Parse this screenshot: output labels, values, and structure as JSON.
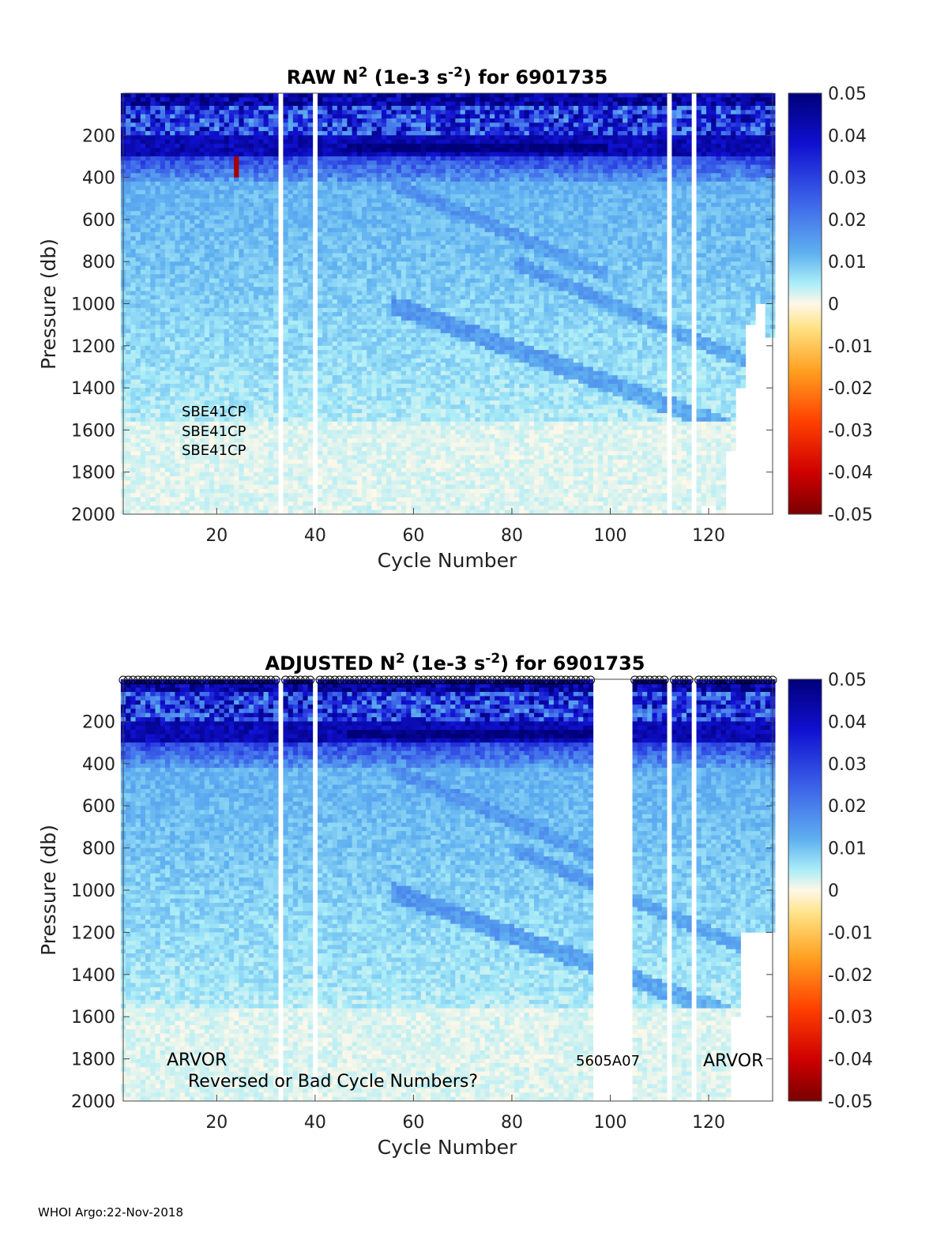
{
  "chart_data": [
    {
      "type": "heatmap",
      "title_parts": {
        "prefix": "RAW N",
        "sup1": "2",
        "mid": " (1e-3 s",
        "sup2": "-2",
        "suffix": ") for 6901735"
      },
      "xlabel": "Cycle Number",
      "ylabel": "Pressure (db)",
      "xlim": [
        1,
        133
      ],
      "ylim": [
        0,
        2000
      ],
      "y_reversed": true,
      "xticks": [
        20,
        40,
        60,
        80,
        100,
        120
      ],
      "yticks": [
        200,
        400,
        600,
        800,
        1000,
        1200,
        1400,
        1600,
        1800,
        2000
      ],
      "colorbar": {
        "ticks": [
          0.05,
          0.04,
          0.03,
          0.02,
          0.01,
          0,
          -0.01,
          -0.02,
          -0.03,
          -0.04,
          -0.05
        ],
        "range": [
          -0.05,
          0.05
        ],
        "colormap": "jet-like"
      },
      "missing_cycles": [
        33,
        40,
        112,
        117
      ],
      "deep_cutoff": [
        {
          "cycle": 119,
          "max_pressure": 1950
        },
        {
          "cycle": 121,
          "max_pressure": 1950
        },
        {
          "cycle": 123,
          "max_pressure": 2000
        },
        {
          "cycle": 125,
          "max_pressure": 1700
        },
        {
          "cycle": 127,
          "max_pressure": 1400
        },
        {
          "cycle": 129,
          "max_pressure": 1100
        },
        {
          "cycle": 131,
          "max_pressure": 1000
        },
        {
          "cycle": 133,
          "max_pressure": 1150
        }
      ],
      "features": {
        "surface_high_n2_band": [
          0,
          200
        ],
        "pycnocline_max_band": [
          240,
          280
        ],
        "spike_negative": {
          "cycle": 24,
          "pressure_range": [
            300,
            400
          ]
        }
      },
      "annotations": [
        "SBE41CP",
        "SBE41CP",
        "SBE41CP"
      ]
    },
    {
      "type": "heatmap",
      "title_parts": {
        "prefix": "ADJUSTED N",
        "sup1": "2",
        "mid": " (1e-3 s",
        "sup2": "-2",
        "suffix": ") for 6901735"
      },
      "xlabel": "Cycle Number",
      "ylabel": "Pressure (db)",
      "xlim": [
        1,
        133
      ],
      "ylim": [
        0,
        2000
      ],
      "y_reversed": true,
      "xticks": [
        20,
        40,
        60,
        80,
        100,
        120
      ],
      "yticks": [
        200,
        400,
        600,
        800,
        1000,
        1200,
        1400,
        1600,
        1800,
        2000
      ],
      "colorbar": {
        "ticks": [
          0.05,
          0.04,
          0.03,
          0.02,
          0.01,
          0,
          -0.01,
          -0.02,
          -0.03,
          -0.04,
          -0.05
        ],
        "range": [
          -0.05,
          0.05
        ],
        "colormap": "jet-like"
      },
      "missing_cycles": [
        33,
        40,
        97,
        98,
        99,
        100,
        101,
        102,
        103,
        104,
        112,
        117
      ],
      "features": {
        "surface_high_n2_band": [
          0,
          200
        ],
        "pycnocline_max_band": [
          240,
          280
        ]
      },
      "annotations": [
        "ARVOR",
        "Reversed or Bad Cycle Numbers?",
        "5605A07",
        "ARVOR"
      ]
    }
  ],
  "footer": "WHOI Argo:22-Nov-2018"
}
